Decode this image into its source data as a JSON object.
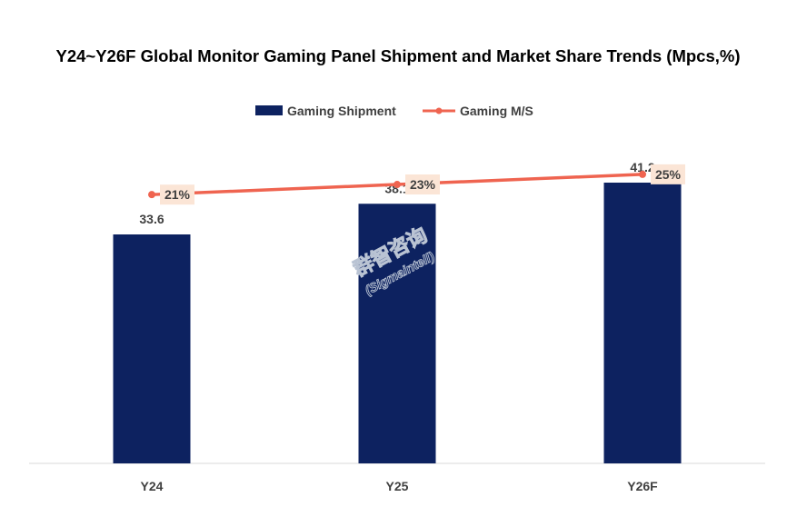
{
  "chart_data": {
    "type": "bar",
    "title": "Y24~Y26F Global Monitor Gaming Panel Shipment and Market Share Trends (Mpcs,%)",
    "categories": [
      "Y24",
      "Y25",
      "Y26F"
    ],
    "series": [
      {
        "name": "Gaming Shipment",
        "kind": "bar",
        "values": [
          33.6,
          38.1,
          41.2
        ],
        "labels": [
          "33.6",
          "38.1",
          "41.2"
        ],
        "color": "#0d2260"
      },
      {
        "name": "Gaming M/S",
        "kind": "line",
        "values": [
          21,
          23,
          25
        ],
        "labels": [
          "21%",
          "23%",
          "25%"
        ],
        "color": "#ef6450"
      }
    ],
    "ylim": [
      0,
      48
    ],
    "y2lim": [
      -32,
      32.5
    ],
    "legend_position": "top-center",
    "grid": false,
    "data_label_bg": "#fbe5d6"
  },
  "watermark": {
    "cn": "群智咨询",
    "en": "(Sigmaintell)"
  }
}
